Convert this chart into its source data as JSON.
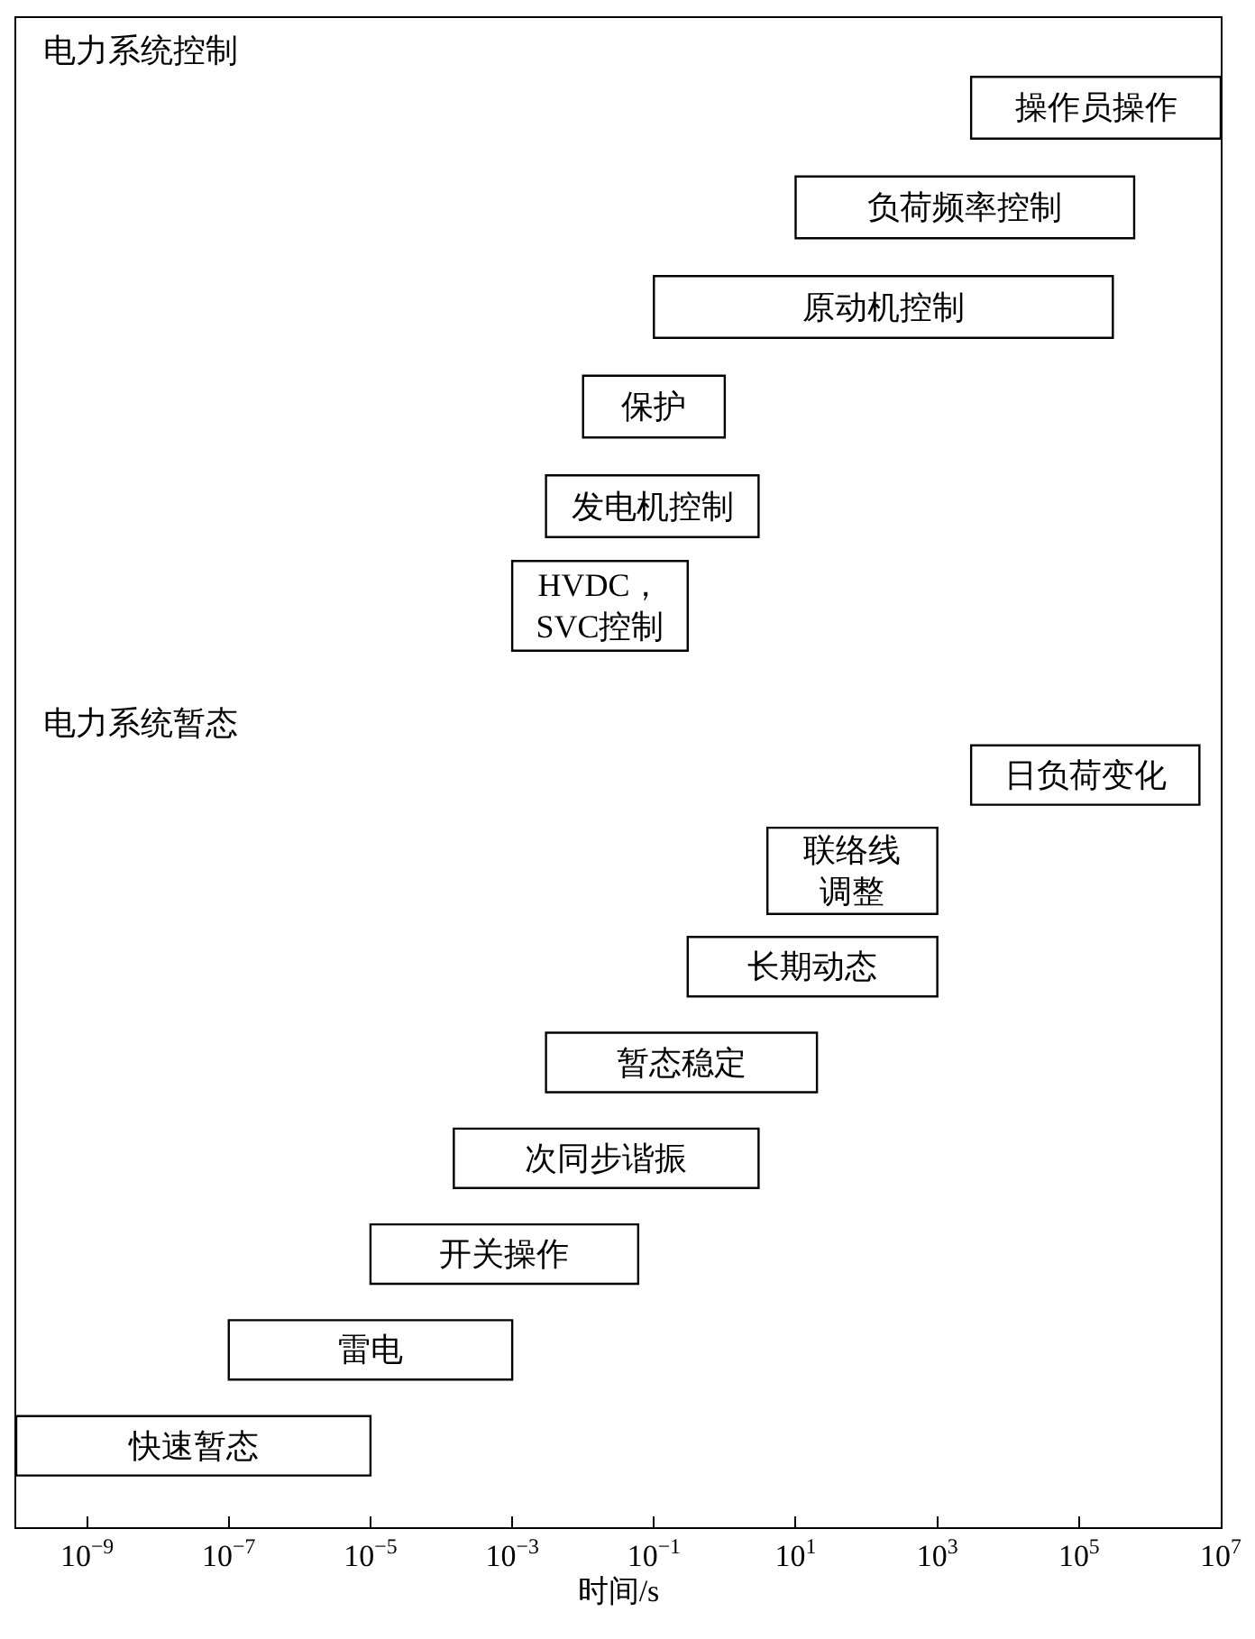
{
  "chart_data": [
    {
      "type": "bar",
      "orientation": "horizontal",
      "title": "电力系统控制",
      "categories": [
        "操作员操作",
        "负荷频率控制",
        "原动机控制",
        "保护",
        "发电机控制",
        "HVDC，SVC控制"
      ],
      "base": [
        3000,
        10,
        0.1,
        0.01,
        0.003,
        0.001
      ],
      "values": [
        9997000,
        599990,
        299999.9,
        0.99,
        2.997,
        0.299
      ],
      "color": "#ffffff",
      "log": "x",
      "xlim": [
        1e-10,
        10000000.0
      ],
      "tick_labels": false
    },
    {
      "type": "bar",
      "orientation": "horizontal",
      "title": "电力系统暂态",
      "xlabel": "时间/s",
      "categories": [
        "日负荷变化",
        "联络线调整",
        "长期动态",
        "暂态稳定",
        "次同步谐振",
        "开关操作",
        "雷电",
        "快速暂态"
      ],
      "base": [
        3000,
        4,
        0.3,
        0.003,
        0.00015,
        1e-05,
        1e-07,
        1e-10
      ],
      "values": [
        4997000,
        996,
        999.7,
        19.997,
        2.99985,
        0.05999,
        0.0009999,
        9.9999e-06
      ],
      "color": "#ffffff",
      "log": "x",
      "xlim": [
        1e-10,
        10000000.0
      ],
      "xticks": [
        {
          "value": 1e-09,
          "label": "10$^{−9}$"
        },
        {
          "value": 1e-07,
          "label": "10$^{−7}$"
        },
        {
          "value": 1e-05,
          "label": "10$^{−5}$"
        },
        {
          "value": 0.001,
          "label": "10$^{−3}$"
        },
        {
          "value": 0.1,
          "label": "10$^{−1}$"
        },
        {
          "value": 10,
          "label": "10$^{1}$"
        },
        {
          "value": 1000,
          "label": "10$^{3}$"
        },
        {
          "value": 100000,
          "label": "10$^{5}$"
        },
        {
          "value": 10000000,
          "label": "10$^{7}$"
        }
      ],
      "tick_labels": "x"
    }
  ]
}
